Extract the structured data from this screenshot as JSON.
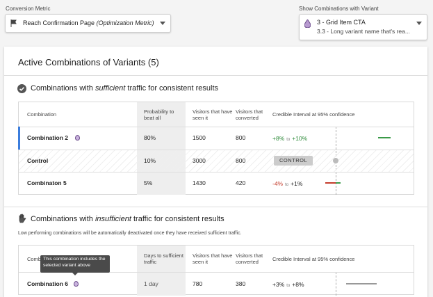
{
  "controls": {
    "metric": {
      "label": "Conversion Metric",
      "value": "Reach Confirmation Page",
      "value_note": "(Optimization Metric)"
    },
    "variant": {
      "label": "Show Combinations with Variant",
      "value": "3 - Grid Item CTA",
      "sub_value": "3.3 - Long variant name that's rea..."
    }
  },
  "panel": {
    "title": "Active Combinations of Variants (5)"
  },
  "sufficient": {
    "heading": [
      "Combinations with ",
      "sufficient",
      " traffic for consistent results"
    ],
    "columns": [
      "Combination",
      "Probability to beat all",
      "Visitors that have seen it",
      "Visitors that converted",
      "Credible Interval at 95% confidence"
    ],
    "rows": [
      {
        "name": "Combination 2",
        "metric": "80%",
        "seen": "1500",
        "converted": "800",
        "low": "+8%",
        "sep": "to",
        "high": "+10%"
      },
      {
        "name": "Control",
        "metric": "10%",
        "seen": "3000",
        "converted": "800",
        "badge": "CONTROL"
      },
      {
        "name": "Combinaton 5",
        "metric": "5%",
        "seen": "1430",
        "converted": "420",
        "low": "-4%",
        "sep": "to",
        "high": "+1%"
      }
    ]
  },
  "insufficient": {
    "heading": [
      "Combinations with ",
      "insufficient",
      " traffic for consistent results"
    ],
    "note": "Low performing combinations will be automatically deactivated once they have received sufficient traffic.",
    "columns": [
      "Combination",
      "Days to sufficient traffic",
      "Visitors that have seen it",
      "Visitors that converted",
      "Credible Interval at 95% confidence"
    ],
    "rows": [
      {
        "name": "Combination 6",
        "metric": "1 day",
        "seen": "780",
        "converted": "380",
        "low": "+3%",
        "sep": "to",
        "high": "+8%"
      }
    ],
    "tooltip": "This combination includes the selected variant above"
  }
}
